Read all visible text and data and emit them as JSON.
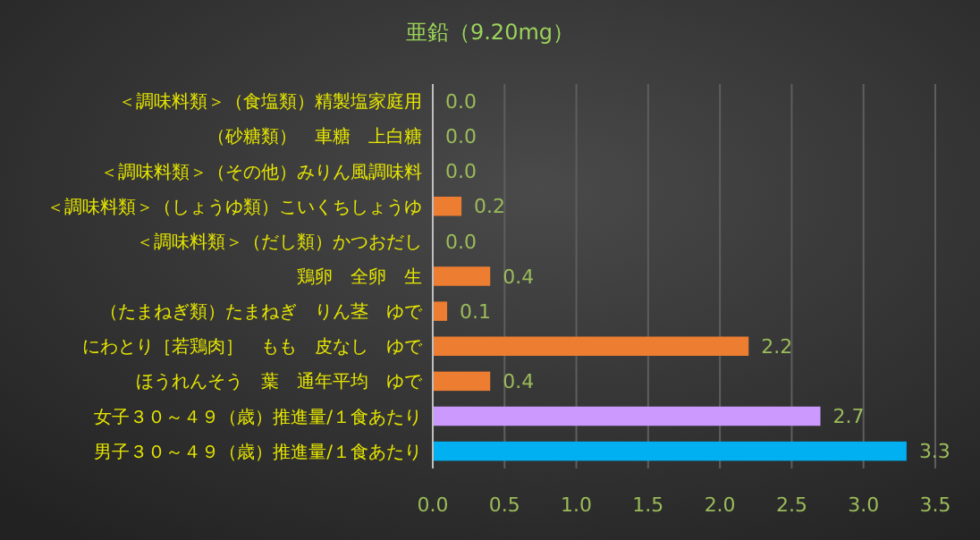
{
  "chart_data": {
    "type": "bar",
    "orientation": "horizontal",
    "title": "亜鉛（9.20mg）",
    "categories": [
      "＜調味料類＞（食塩類）精製塩家庭用",
      "（砂糖類）　車糖　上白糖",
      "＜調味料類＞（その他）みりん風調味料",
      "＜調味料類＞（しょうゆ類）こいくちしょうゆ",
      "＜調味料類＞（だし類）かつおだし",
      "鶏卵　全卵　生",
      "（たまねぎ類）たまねぎ　りん茎　ゆで",
      "にわとり［若鶏肉］　もも　皮なし　ゆで",
      "ほうれんそう　葉　通年平均　ゆで",
      "女子３０～４９（歳）推進量/１食あたり",
      "男子３０～４９（歳）推進量/１食あたり"
    ],
    "values": [
      0,
      0,
      0,
      0.2,
      0,
      0.4,
      0.1,
      2.2,
      0.4,
      2.7,
      3.3
    ],
    "value_labels": [
      "0.0",
      "0.0",
      "0.0",
      "0.2",
      "0.0",
      "0.4",
      "0.1",
      "2.2",
      "0.4",
      "2.7",
      "3.3"
    ],
    "colors": [
      "#ed7d31",
      "#ed7d31",
      "#ed7d31",
      "#ed7d31",
      "#ed7d31",
      "#ed7d31",
      "#ed7d31",
      "#ed7d31",
      "#ed7d31",
      "#cc99ff",
      "#00b0f0"
    ],
    "xlim": [
      0,
      3.5
    ],
    "xticks": [
      {
        "value": 0,
        "label": "0.0"
      },
      {
        "value": 0.5,
        "label": "0.5"
      },
      {
        "value": 1,
        "label": "1.0"
      },
      {
        "value": 1.5,
        "label": "1.5"
      },
      {
        "value": 2,
        "label": "2.0"
      },
      {
        "value": 2.5,
        "label": "2.5"
      },
      {
        "value": 3,
        "label": "3.0"
      },
      {
        "value": 3.5,
        "label": "3.5"
      }
    ],
    "grid": "x"
  }
}
